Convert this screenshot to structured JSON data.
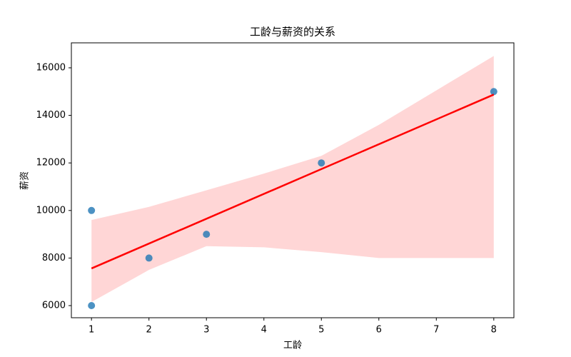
{
  "chart_data": {
    "type": "scatter",
    "title": "工龄与薪资的关系",
    "x_label": "工龄",
    "y_label": "薪资",
    "x": [
      1,
      1,
      2,
      3,
      5,
      8
    ],
    "y": [
      10000,
      6000,
      8000,
      9000,
      12000,
      15000
    ],
    "color": "#1f77b4",
    "fit": {
      "x": [
        1,
        8
      ],
      "y": [
        7563,
        14875
      ],
      "color": "#ff0000"
    },
    "ci": {
      "x": [
        1,
        2,
        3,
        4,
        5,
        6,
        7,
        8
      ],
      "upper": [
        9600,
        10150,
        10850,
        11550,
        12300,
        13600,
        15050,
        16500
      ],
      "lower": [
        6150,
        7500,
        8500,
        8450,
        8250,
        8000,
        8000,
        8000
      ],
      "color": "#ffd6d6"
    },
    "xlim": [
      0.65,
      8.35
    ],
    "ylim": [
      5490,
      17050
    ],
    "xticks": [
      1,
      2,
      3,
      4,
      5,
      6,
      7,
      8
    ],
    "yticks": [
      6000,
      8000,
      10000,
      12000,
      14000,
      16000
    ]
  }
}
